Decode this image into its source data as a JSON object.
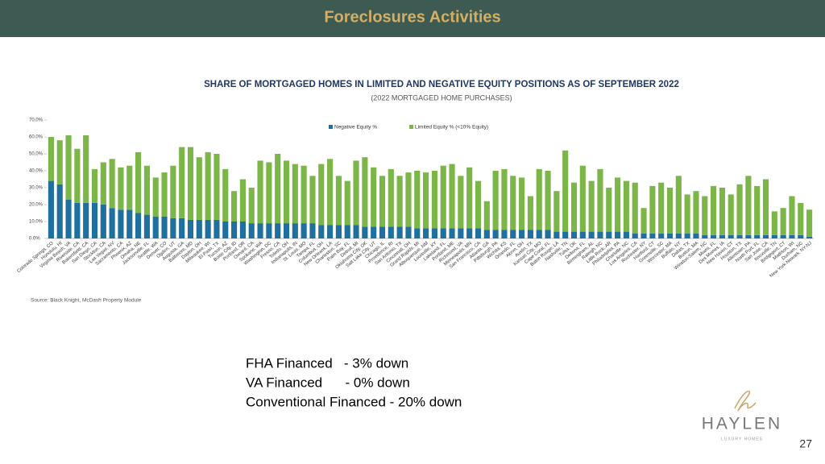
{
  "header": {
    "title": "Foreclosures Activities"
  },
  "chart_data": {
    "type": "bar",
    "stacked": true,
    "title": "SHARE OF MORTGAGED HOMES IN LIMITED AND NEGATIVE EQUITY POSITIONS AS OF SEPTEMBER 2022",
    "subtitle": "(2022 MORTGAGED HOME PURCHASES)",
    "source": "Source: Black Knight, McDash Property Module",
    "legend": "top",
    "categories": [
      "Colorado Springs, CO",
      "Honolulu, HI",
      "Virginia Beach, VA",
      "Riverside, CA",
      "Bakersfield, CA",
      "San Diego, CA",
      "Stockton, CA",
      "Las Vegas, NV",
      "Sacramento, CA",
      "Phoenix, AZ",
      "Omaha, NE",
      "Jacksonville, FL",
      "Seattle, WA",
      "Denver, CO",
      "Ogden, UT",
      "Augusta, GA",
      "Baltimore, MD",
      "Dayton, OH",
      "Milwaukee, WI",
      "El Paso, TX",
      "Tucson, AZ",
      "Boise City, ID",
      "Portland, OR",
      "Oxnard, CA",
      "Spokane, WA",
      "Washington, DC",
      "Fresno, CA",
      "Toledo, OH",
      "Indianapolis, IN",
      "St. Louis, MO",
      "Tampa, FL",
      "Columbus, OH",
      "New Orleans, LA",
      "Charleston, SC",
      "Palm Bay, FL",
      "Detroit, MI",
      "Oklahoma City, OK",
      "Salt Lake City, UT",
      "Chicago, IL",
      "Providence, RI",
      "San Antonio, TX",
      "Cincinnati, OH",
      "Grand Rapids, MI",
      "Albuquerque, NM",
      "Louisville, KY",
      "Lakeland, FL",
      "Portland, ME",
      "Richmond, VA",
      "Minneapolis, MN",
      "San Francisco, CA",
      "Atlanta, GA",
      "Pittsburgh, PA",
      "Wichita, KS",
      "Orlando, FL",
      "Akron, OH",
      "Austin, TX",
      "Kansas City, MO",
      "Cape Coral, FL",
      "Baton Rouge, LA",
      "Nashville, TN",
      "Tulsa, OK",
      "Deltona, FL",
      "Birmingham, AL",
      "Raleigh, NC",
      "Little Rock, AR",
      "Philadelphia, PA",
      "Charlotte, NC",
      "Los Angeles, CA",
      "Rochester, NY",
      "Hartford, CT",
      "Greenville, SC",
      "Worcester, MA",
      "Buffalo, NY",
      "Dallas, TX",
      "Boston, MA",
      "Winston-Salem, NC",
      "Miami, FL",
      "Des Moines, IA",
      "New Haven, CT",
      "Houston, TX",
      "Allentown, PA",
      "North Port, FL",
      "San Jose, CA",
      "Knoxville, TN",
      "Bridgeport, CT",
      "Madison, WI",
      "Durham, NC",
      "New York-Newark, NY-NJ"
    ],
    "series": [
      {
        "name": "Negative Equity %",
        "color": "#1f6f9f",
        "values": [
          34,
          32,
          23,
          21,
          21,
          21,
          20,
          18,
          17,
          17,
          15,
          14,
          13,
          13,
          12,
          12,
          11,
          11,
          11,
          11,
          10,
          10,
          10,
          9,
          9,
          9,
          9,
          9,
          9,
          9,
          9,
          8,
          8,
          8,
          8,
          8,
          7,
          7,
          7,
          7,
          7,
          7,
          6,
          6,
          6,
          6,
          6,
          6,
          6,
          6,
          5,
          5,
          5,
          5,
          5,
          5,
          5,
          5,
          4,
          4,
          4,
          4,
          4,
          4,
          4,
          4,
          4,
          3,
          3,
          3,
          3,
          3,
          3,
          3,
          3,
          2,
          2,
          2,
          2,
          2,
          2,
          2,
          2,
          2,
          2,
          2,
          2,
          1
        ]
      },
      {
        "name": "Limited Equity % (<10% Equity)",
        "color": "#7cb648",
        "values": [
          26,
          26,
          38,
          32,
          40,
          20,
          25,
          29,
          25,
          26,
          36,
          29,
          23,
          26,
          31,
          42,
          43,
          37,
          40,
          39,
          31,
          18,
          25,
          21,
          37,
          36,
          41,
          37,
          35,
          34,
          28,
          36,
          39,
          29,
          26,
          38,
          41,
          35,
          30,
          34,
          30,
          32,
          34,
          33,
          34,
          37,
          38,
          31,
          36,
          28,
          17,
          35,
          36,
          32,
          31,
          20,
          36,
          35,
          24,
          48,
          29,
          39,
          30,
          37,
          26,
          32,
          30,
          30,
          15,
          28,
          30,
          27,
          34,
          23,
          25,
          23,
          29,
          28,
          24,
          30,
          35,
          29,
          33,
          14,
          16,
          23,
          19,
          16
        ]
      }
    ],
    "ylim": [
      0,
      70
    ],
    "yticks": [
      {
        "value": 0,
        "label": "0.0%"
      },
      {
        "value": 10,
        "label": "10.0%"
      },
      {
        "value": 20,
        "label": "20.0%"
      },
      {
        "value": 30,
        "label": "30.0%"
      },
      {
        "value": 40,
        "label": "40.0%"
      },
      {
        "value": 50,
        "label": "50.0%"
      },
      {
        "value": 60,
        "label": "60.0%"
      },
      {
        "value": 70,
        "label": "70.0%"
      }
    ],
    "grid": false
  },
  "notes": [
    "FHA Financed   - 3% down",
    "VA Financed      - 0% down",
    "Conventional Financed - 20% down"
  ],
  "logo": {
    "name": "HAYLEN",
    "tagline": "LUXURY HOMES"
  },
  "page_number": "27"
}
